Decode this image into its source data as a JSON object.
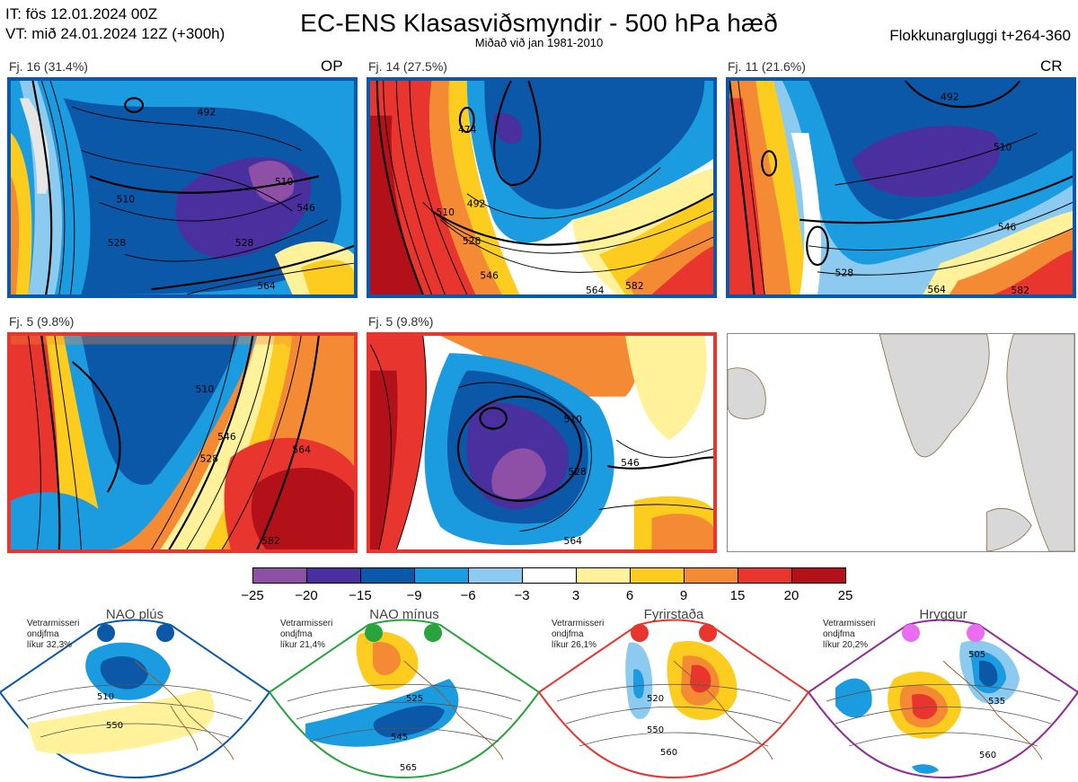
{
  "header": {
    "it_line": "IT: fös 12.01.2024 00Z",
    "vt_line": "VT: mið 24.01.2024 12Z  (+300h)",
    "title": "EC-ENS Klasasviðsmyndir - 500 hPa hæð",
    "subtitle": "Miðað við jan 1981-2010",
    "window": "Flokkunargluggi t+264-360"
  },
  "panels": [
    {
      "label": "Fj. 16 (31.4%)",
      "tag": "OP",
      "contours": [
        "492",
        "510",
        "528",
        "546",
        "564",
        "510",
        "528"
      ]
    },
    {
      "label": "Fj. 14 (27.5%)",
      "tag": "",
      "contours": [
        "474",
        "492",
        "510",
        "528",
        "546",
        "564",
        "582"
      ]
    },
    {
      "label": "Fj. 11 (21.6%)",
      "tag": "CR",
      "contours": [
        "492",
        "510",
        "528",
        "546",
        "564",
        "582"
      ]
    },
    {
      "label": "Fj. 5 (9.8%)",
      "tag": "",
      "contours": [
        "510",
        "528",
        "546",
        "564",
        "582"
      ]
    },
    {
      "label": "Fj. 5 (9.8%)",
      "tag": "",
      "contours": [
        "510",
        "528",
        "546",
        "564"
      ]
    }
  ],
  "colorbar": {
    "ticks": [
      "−25",
      "−20",
      "−15",
      "−9",
      "−6",
      "−3",
      "3",
      "6",
      "9",
      "15",
      "20",
      "25"
    ],
    "colors": [
      "#8e4fa6",
      "#4a2f9e",
      "#0b57a8",
      "#1b9be0",
      "#8ccbef",
      "#ffffff",
      "#fff29a",
      "#fccd1f",
      "#f58a35",
      "#e8352e",
      "#b3111a"
    ]
  },
  "regimes": [
    {
      "title": "NAO plús",
      "note": [
        "Vetrarmisseri",
        "ondjfma",
        "líkur 32,3%"
      ],
      "color": "#0b57a8",
      "contours": [
        "510",
        "550"
      ]
    },
    {
      "title": "NAO mínus",
      "note": [
        "Vetrarmisseri",
        "ondjfma",
        "líkur 21,4%"
      ],
      "color": "#29a33c",
      "contours": [
        "525",
        "545",
        "565"
      ]
    },
    {
      "title": "Fyrirstaða",
      "note": [
        "Vetrarmisseri",
        "ondjfma",
        "líkur 26,1%"
      ],
      "color": "#e8352e",
      "contours": [
        "520",
        "550",
        "560"
      ]
    },
    {
      "title": "Hryggur",
      "note": [
        "Vetrarmisseri",
        "ondjfma",
        "líkur 20,2%"
      ],
      "color": "#8f2c96",
      "contours": [
        "505",
        "535",
        "560"
      ]
    }
  ]
}
